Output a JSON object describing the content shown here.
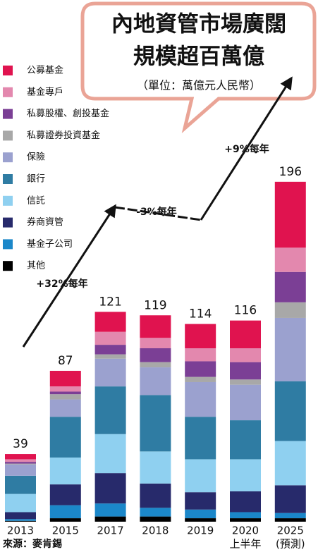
{
  "chart_data": {
    "type": "stacked_bar",
    "title": "內地資管市場廣闊",
    "title_line2": "規模超百萬億",
    "subtitle": "（單位：萬億元人民幣）",
    "source": "來源：麥肯錫",
    "categories": [
      "2013",
      "2015",
      "2017",
      "2018",
      "2019",
      "2020",
      "2025"
    ],
    "category_notes": [
      null,
      null,
      null,
      null,
      null,
      "上半年",
      "(預測)"
    ],
    "totals": [
      39,
      87,
      121,
      119,
      114,
      116,
      196
    ],
    "annotations": [
      "+32%每年",
      "-3%每年",
      "+9%每年"
    ],
    "series": [
      {
        "name": "公募基金",
        "color": "#e0134f",
        "values": [
          3,
          9,
          11.5,
          13,
          14,
          16,
          38
        ]
      },
      {
        "name": "基金專戶",
        "color": "#e388ae",
        "values": [
          1.5,
          3,
          7.5,
          6,
          7.5,
          8,
          14
        ]
      },
      {
        "name": "私募股權、創投基金",
        "color": "#7b3f95",
        "values": [
          1,
          1.5,
          5.5,
          8,
          9,
          10,
          17.5
        ]
      },
      {
        "name": "私募證券投資基金",
        "color": "#a8a8a8",
        "values": [
          0.5,
          3,
          2.5,
          3,
          3,
          3,
          9
        ]
      },
      {
        "name": "保險",
        "color": "#9ba1cf",
        "values": [
          6.5,
          10,
          16,
          16,
          20,
          20.5,
          36.5
        ]
      },
      {
        "name": "銀行",
        "color": "#2f7ca3",
        "values": [
          10.5,
          23.5,
          27.5,
          32.5,
          24.5,
          22.5,
          34.5
        ]
      },
      {
        "name": "信託",
        "color": "#8fd0f0",
        "values": [
          10.5,
          15.5,
          22.5,
          18.5,
          19,
          18.5,
          25.5
        ]
      },
      {
        "name": "券商資管",
        "color": "#272a6b",
        "values": [
          4,
          12,
          17.5,
          14,
          10,
          12,
          16
        ]
      },
      {
        "name": "基金子公司",
        "color": "#1b87c9",
        "values": [
          1,
          7.5,
          7.5,
          5,
          5,
          3.5,
          3
        ]
      },
      {
        "name": "其他",
        "color": "#000000",
        "values": [
          0.5,
          2,
          3,
          3,
          2,
          2,
          2
        ]
      }
    ]
  }
}
